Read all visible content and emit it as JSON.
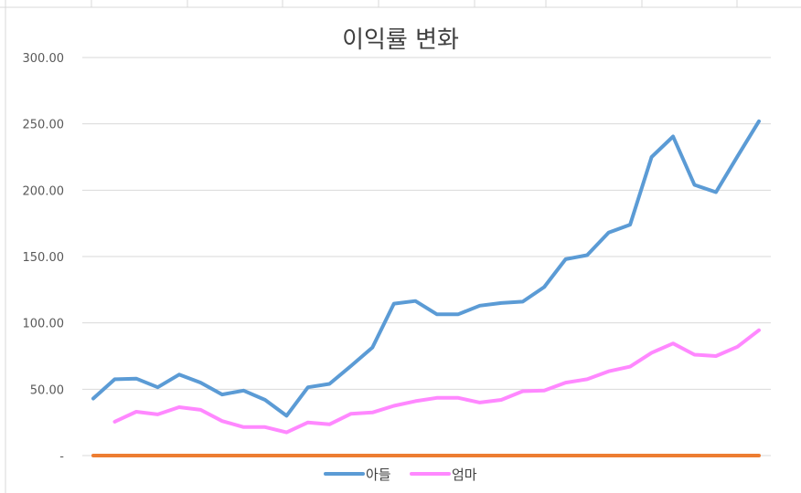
{
  "chart_data": {
    "type": "line",
    "title": "이익률 변화",
    "xlabel": "",
    "ylabel": "",
    "ylim": [
      0,
      300
    ],
    "grid": true,
    "legend_position": "bottom",
    "y_ticks": [
      {
        "value": 0,
        "label": "-"
      },
      {
        "value": 50,
        "label": "50.00"
      },
      {
        "value": 100,
        "label": "100.00"
      },
      {
        "value": 150,
        "label": "150.00"
      },
      {
        "value": 200,
        "label": "200.00"
      },
      {
        "value": 250,
        "label": "250.00"
      },
      {
        "value": 300,
        "label": "300.00"
      }
    ],
    "x_count": 32,
    "series": [
      {
        "name": "아들",
        "color": "#5b9bd5",
        "values": [
          43,
          57.5,
          58,
          51.5,
          61,
          55,
          46,
          49,
          42,
          30,
          51.5,
          54,
          67.5,
          81.5,
          114.5,
          116.5,
          106.5,
          106.5,
          113,
          115,
          116,
          127,
          148,
          151,
          168,
          174,
          225,
          240.5,
          204,
          198.5,
          225.5,
          252
        ]
      },
      {
        "name": "엄마",
        "color": "#ff88ff",
        "values": [
          null,
          25.5,
          33,
          31,
          36.5,
          34.5,
          26,
          21.5,
          21.5,
          17.5,
          25,
          23.5,
          31.5,
          32.5,
          37.5,
          41,
          43.5,
          43.5,
          40,
          42,
          48.5,
          49,
          55,
          57.5,
          63.5,
          67,
          77.5,
          84.5,
          76,
          75,
          82,
          94.5
        ]
      },
      {
        "name": "",
        "color": "#ed7d31",
        "values": [
          0,
          0,
          0,
          0,
          0,
          0,
          0,
          0,
          0,
          0,
          0,
          0,
          0,
          0,
          0,
          0,
          0,
          0,
          0,
          0,
          0,
          0,
          0,
          0,
          0,
          0,
          0,
          0,
          0,
          0,
          0,
          0
        ]
      }
    ]
  }
}
